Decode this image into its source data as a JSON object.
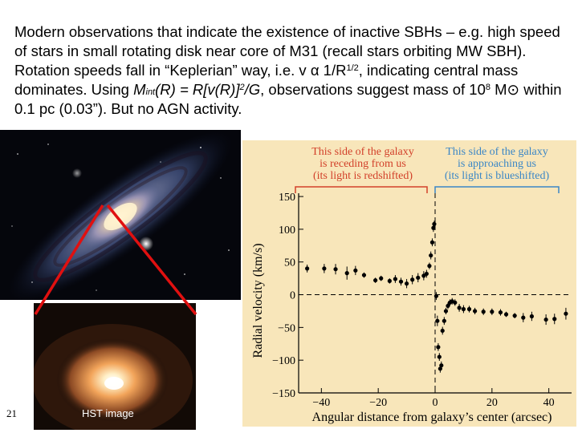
{
  "slide": {
    "number": "21",
    "text_parts": [
      "Modern observations that indicate the existence of inactive SBHs – e.g. high speed of stars in small rotating disk near core of M31 (recall stars orbiting MW SBH).  Rotation speeds fall in “Keplerian” way, i.e. v ",
      "α",
      " 1/R",
      "1/2",
      ", indicating central mass dominates.   Using ",
      "M",
      "int",
      "(R) = R[v(R)]",
      "2",
      "/G",
      ", observations suggest mass of 10",
      "8",
      " M",
      "⊙",
      " within 0.1 pc (0.03”).  But no AGN activity."
    ]
  },
  "images": {
    "galaxy_icon": "andromeda-galaxy-photo",
    "hst_icon": "hst-core-photo",
    "hst_label": "HST image"
  },
  "colors": {
    "pointer_red": "#e01010",
    "red_annotation": "#d2402a",
    "blue_annotation": "#3a86c6",
    "chart_background": "#f8e6ba"
  },
  "chart_data": {
    "type": "scatter",
    "xlabel": "Angular distance from galaxy’s center (arcsec)",
    "ylabel": "Radial velocity (km/s)",
    "xlim": [
      -48,
      48
    ],
    "ylim": [
      -150,
      155
    ],
    "xticks": [
      -40,
      -20,
      0,
      20,
      40
    ],
    "yticks": [
      150,
      100,
      50,
      0,
      -50,
      -100,
      -150
    ],
    "grid": false,
    "reference_lines": {
      "x": 0,
      "y": 0
    },
    "annotations": {
      "left": [
        "This side of the galaxy",
        "is receding from us",
        "(its light is redshifted)"
      ],
      "right": [
        "This side of the galaxy",
        "is approaching us",
        "(its light is blueshifted)"
      ]
    },
    "points": [
      {
        "x": -45,
        "y": 40,
        "err": 6
      },
      {
        "x": -39,
        "y": 40,
        "err": 7
      },
      {
        "x": -35,
        "y": 39,
        "err": 8
      },
      {
        "x": -31,
        "y": 33,
        "err": 10
      },
      {
        "x": -28,
        "y": 37,
        "err": 7
      },
      {
        "x": -25,
        "y": 30,
        "err": 4
      },
      {
        "x": -21,
        "y": 22,
        "err": 4
      },
      {
        "x": -19,
        "y": 25,
        "err": 4
      },
      {
        "x": -16,
        "y": 21,
        "err": 4
      },
      {
        "x": -14,
        "y": 24,
        "err": 6
      },
      {
        "x": -12,
        "y": 20,
        "err": 6
      },
      {
        "x": -10,
        "y": 17,
        "err": 7
      },
      {
        "x": -8,
        "y": 23,
        "err": 7
      },
      {
        "x": -6,
        "y": 26,
        "err": 7
      },
      {
        "x": -4,
        "y": 29,
        "err": 7
      },
      {
        "x": -3,
        "y": 32,
        "err": 6
      },
      {
        "x": -2,
        "y": 44,
        "err": 5
      },
      {
        "x": -1.5,
        "y": 60,
        "err": 6
      },
      {
        "x": -1,
        "y": 80,
        "err": 6
      },
      {
        "x": -0.6,
        "y": 102,
        "err": 6
      },
      {
        "x": -0.3,
        "y": 108,
        "err": 5
      },
      {
        "x": 0.4,
        "y": -2,
        "err": 6
      },
      {
        "x": 0.8,
        "y": -40,
        "err": 8
      },
      {
        "x": 1.1,
        "y": -80,
        "err": 6
      },
      {
        "x": 1.5,
        "y": -95,
        "err": 6
      },
      {
        "x": 1.8,
        "y": -113,
        "err": 6
      },
      {
        "x": 2.2,
        "y": -108,
        "err": 6
      },
      {
        "x": 2.6,
        "y": -55,
        "err": 6
      },
      {
        "x": 3.2,
        "y": -40,
        "err": 6
      },
      {
        "x": 3.8,
        "y": -25,
        "err": 5
      },
      {
        "x": 4.5,
        "y": -17,
        "err": 5
      },
      {
        "x": 5.2,
        "y": -12,
        "err": 5
      },
      {
        "x": 6,
        "y": -10,
        "err": 5
      },
      {
        "x": 7,
        "y": -12,
        "err": 5
      },
      {
        "x": 8.5,
        "y": -20,
        "err": 6
      },
      {
        "x": 10,
        "y": -22,
        "err": 6
      },
      {
        "x": 12,
        "y": -22,
        "err": 5
      },
      {
        "x": 14,
        "y": -25,
        "err": 5
      },
      {
        "x": 17,
        "y": -26,
        "err": 5
      },
      {
        "x": 20,
        "y": -26,
        "err": 5
      },
      {
        "x": 23,
        "y": -27,
        "err": 5
      },
      {
        "x": 25,
        "y": -30,
        "err": 4
      },
      {
        "x": 28,
        "y": -32,
        "err": 4
      },
      {
        "x": 31,
        "y": -35,
        "err": 7
      },
      {
        "x": 34,
        "y": -33,
        "err": 7
      },
      {
        "x": 39,
        "y": -38,
        "err": 8
      },
      {
        "x": 42,
        "y": -37,
        "err": 8
      },
      {
        "x": 46,
        "y": -29,
        "err": 9
      }
    ]
  }
}
